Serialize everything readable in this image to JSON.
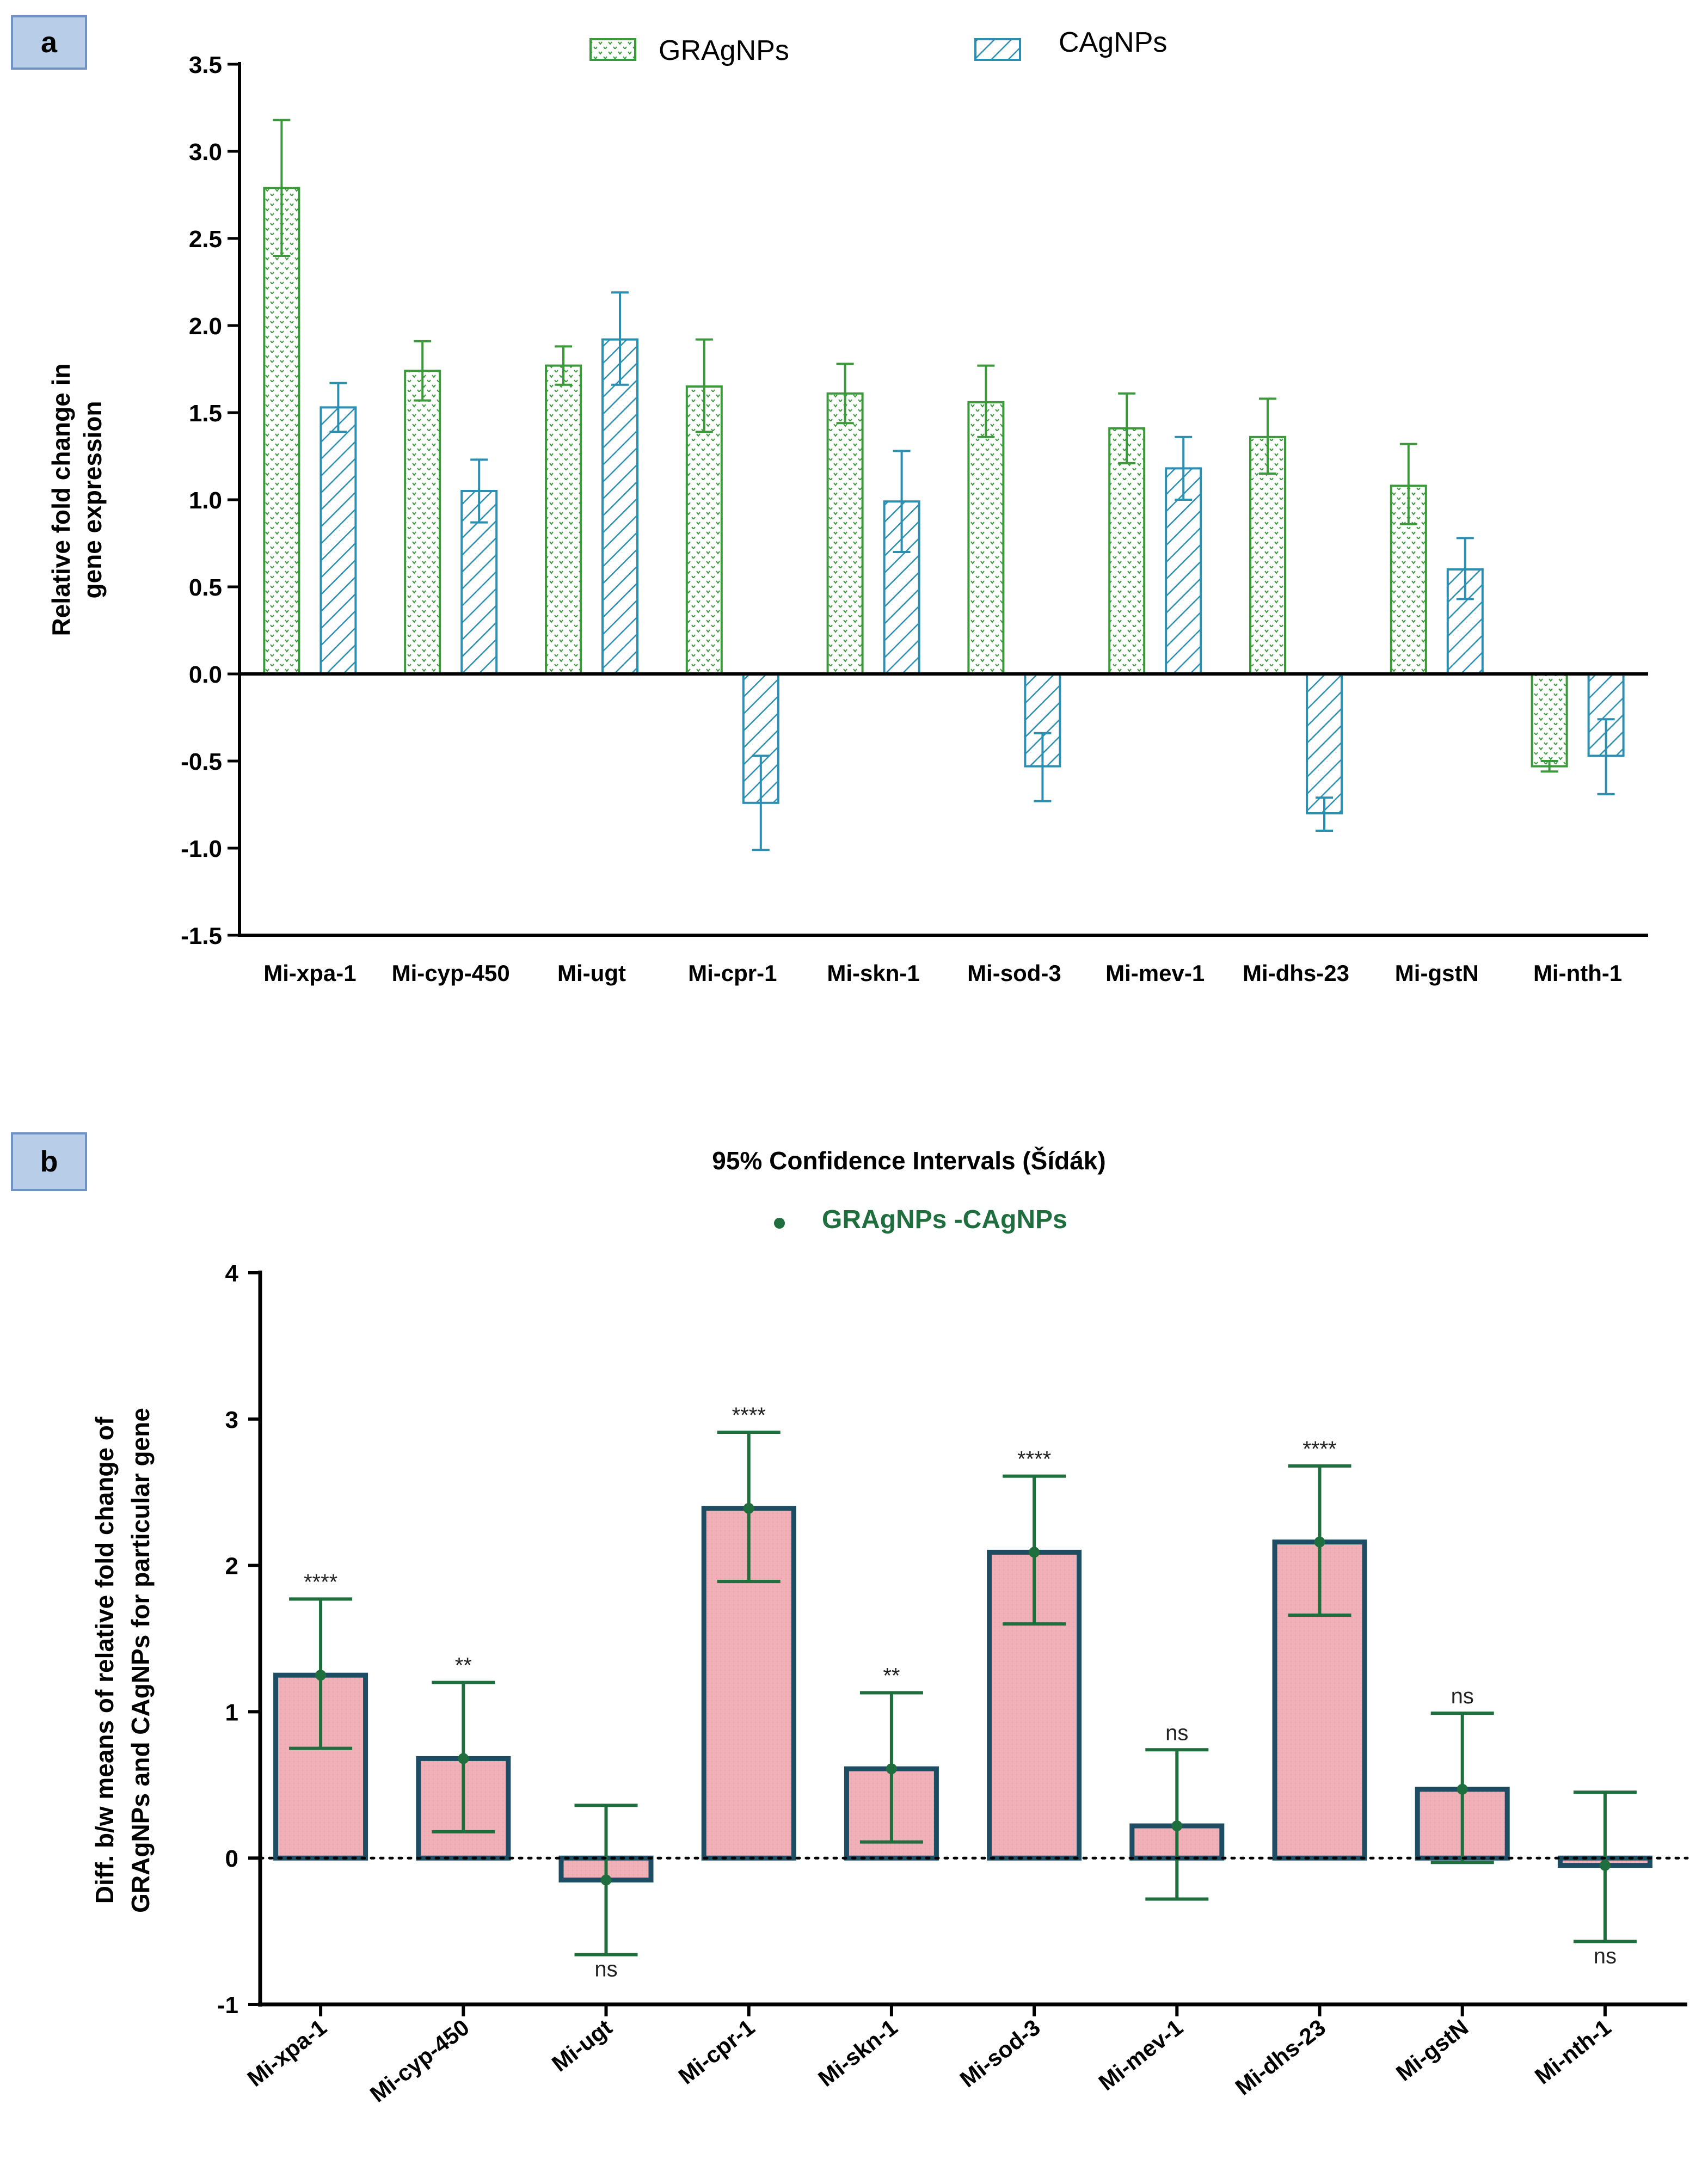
{
  "colors": {
    "green": "#3a9a3a",
    "blue": "#2a8fb0",
    "dark_green": "#1f6e3d",
    "pink": "#f0b0b8",
    "dark_teal": "#1c4d63",
    "panel_label_bg": "#b7cde8",
    "panel_label_border": "#6f93c4"
  },
  "chart_data": [
    {
      "panel": "a",
      "type": "bar",
      "title": "",
      "xlabel": "",
      "ylabel_lines": [
        "Relative fold change in",
        "gene expression"
      ],
      "ylim": [
        -1.5,
        3.5
      ],
      "yticks": [
        3.5,
        3.0,
        2.5,
        2.0,
        1.5,
        1.0,
        0.5,
        0.0,
        -0.5,
        -1.0,
        -1.5
      ],
      "ytick_labels": [
        "3.5",
        "3.0",
        "2.5",
        "2.0",
        "1.5",
        "1.0",
        "0.5",
        "0.0",
        "-0.5",
        "-1.0",
        "-1.5"
      ],
      "categories": [
        "Mi-xpa-1",
        "Mi-cyp-450",
        "Mi-ugt",
        "Mi-cpr-1",
        "Mi-skn-1",
        "Mi-sod-3",
        "Mi-mev-1",
        "Mi-dhs-23",
        "Mi-gstN",
        "Mi-nth-1"
      ],
      "series": [
        {
          "name": "GRAgNPs",
          "values": [
            2.79,
            1.74,
            1.77,
            1.65,
            1.61,
            1.56,
            1.41,
            1.36,
            1.08,
            -0.53
          ],
          "err_low": [
            2.4,
            1.57,
            1.66,
            1.39,
            1.44,
            1.36,
            1.21,
            1.15,
            0.86,
            -0.56
          ],
          "err_high": [
            3.18,
            1.91,
            1.88,
            1.92,
            1.78,
            1.77,
            1.61,
            1.58,
            1.32,
            -0.5
          ]
        },
        {
          "name": "CAgNPs",
          "values": [
            1.53,
            1.05,
            1.92,
            -0.74,
            0.99,
            -0.53,
            1.18,
            -0.8,
            0.6,
            -0.47
          ],
          "err_low": [
            1.39,
            0.87,
            1.66,
            -1.01,
            0.7,
            -0.73,
            1.0,
            -0.9,
            0.43,
            -0.69
          ],
          "err_high": [
            1.67,
            1.23,
            2.19,
            -0.47,
            1.28,
            -0.34,
            1.36,
            -0.71,
            0.78,
            -0.26
          ]
        }
      ]
    },
    {
      "panel": "b",
      "type": "bar",
      "title": "95% Confidence Intervals (Šídák)",
      "legend_label": "GRAgNPs -CAgNPs",
      "xlabel": "",
      "ylabel_lines": [
        "Diff. b/w means of relative fold change of",
        "GRAgNPs and CAgNPs for particular gene"
      ],
      "ylim": [
        -1,
        4
      ],
      "yticks": [
        4,
        3,
        2,
        1,
        0,
        -1
      ],
      "ytick_labels": [
        "4",
        "3",
        "2",
        "1",
        "0",
        "-1"
      ],
      "categories": [
        "Mi-xpa-1",
        "Mi-cyp-450",
        "Mi-ugt",
        "Mi-cpr-1",
        "Mi-skn-1",
        "Mi-sod-3",
        "Mi-mev-1",
        "Mi-dhs-23",
        "Mi-gstN",
        "Mi-nth-1"
      ],
      "values": [
        1.25,
        0.68,
        -0.15,
        2.39,
        0.61,
        2.09,
        0.22,
        2.16,
        0.47,
        -0.05
      ],
      "ci_low": [
        0.75,
        0.18,
        -0.66,
        1.89,
        0.11,
        1.6,
        -0.28,
        1.66,
        -0.03,
        -0.57
      ],
      "ci_high": [
        1.77,
        1.2,
        0.36,
        2.91,
        1.13,
        2.61,
        0.74,
        2.68,
        0.99,
        0.45
      ],
      "significance": [
        "****",
        "**",
        "ns",
        "****",
        "**",
        "****",
        "ns",
        "****",
        "ns",
        "ns"
      ]
    }
  ]
}
